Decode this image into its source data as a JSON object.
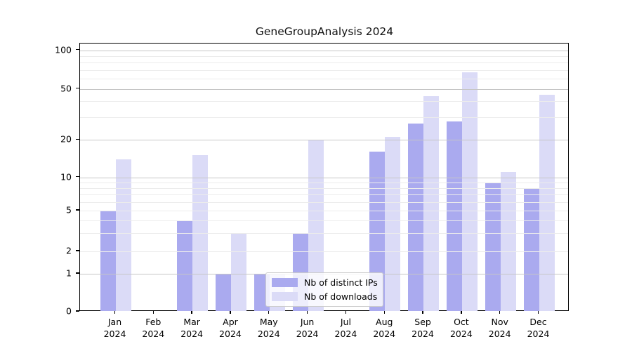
{
  "title": "GeneGroupAnalysis 2024",
  "legend": {
    "items": [
      {
        "label": "Nb of distinct IPs",
        "color": "#aaaaef"
      },
      {
        "label": "Nb of downloads",
        "color": "#dbdbf7"
      }
    ]
  },
  "chart_data": {
    "type": "bar",
    "title": "GeneGroupAnalysis 2024",
    "categories": [
      "Jan 2024",
      "Feb 2024",
      "Mar 2024",
      "Apr 2024",
      "May 2024",
      "Jun 2024",
      "Jul 2024",
      "Aug 2024",
      "Sep 2024",
      "Oct 2024",
      "Nov 2024",
      "Dec 2024"
    ],
    "x_tick_line1": [
      "Jan",
      "Feb",
      "Mar",
      "Apr",
      "May",
      "Jun",
      "Jul",
      "Aug",
      "Sep",
      "Oct",
      "Nov",
      "Dec"
    ],
    "x_tick_line2": [
      "2024",
      "2024",
      "2024",
      "2024",
      "2024",
      "2024",
      "2024",
      "2024",
      "2024",
      "2024",
      "2024",
      "2024"
    ],
    "series": [
      {
        "name": "Nb of distinct IPs",
        "color": "#aaaaef",
        "values": [
          5,
          0,
          4,
          1,
          1,
          3,
          0,
          16,
          27,
          28,
          9,
          8
        ]
      },
      {
        "name": "Nb of downloads",
        "color": "#dbdbf7",
        "values": [
          14,
          0,
          15,
          3,
          1,
          20,
          0,
          21,
          44,
          67,
          11,
          45
        ]
      }
    ],
    "xlabel": "",
    "ylabel": "",
    "ylim": [
      0,
      100
    ],
    "y_scale": "log-like with linear segment below 1",
    "y_ticks_labeled": [
      0,
      1,
      2,
      5,
      10,
      20,
      50,
      100
    ],
    "y_grid_major": [
      1,
      10,
      20,
      50,
      100
    ],
    "y_grid_minor": [
      2,
      3,
      4,
      5,
      6,
      7,
      8,
      9,
      30,
      40,
      60,
      70,
      80,
      90
    ],
    "grid": "horizontal, drawn over bars",
    "legend_position": "lower center, inside axes, translucent white box"
  }
}
